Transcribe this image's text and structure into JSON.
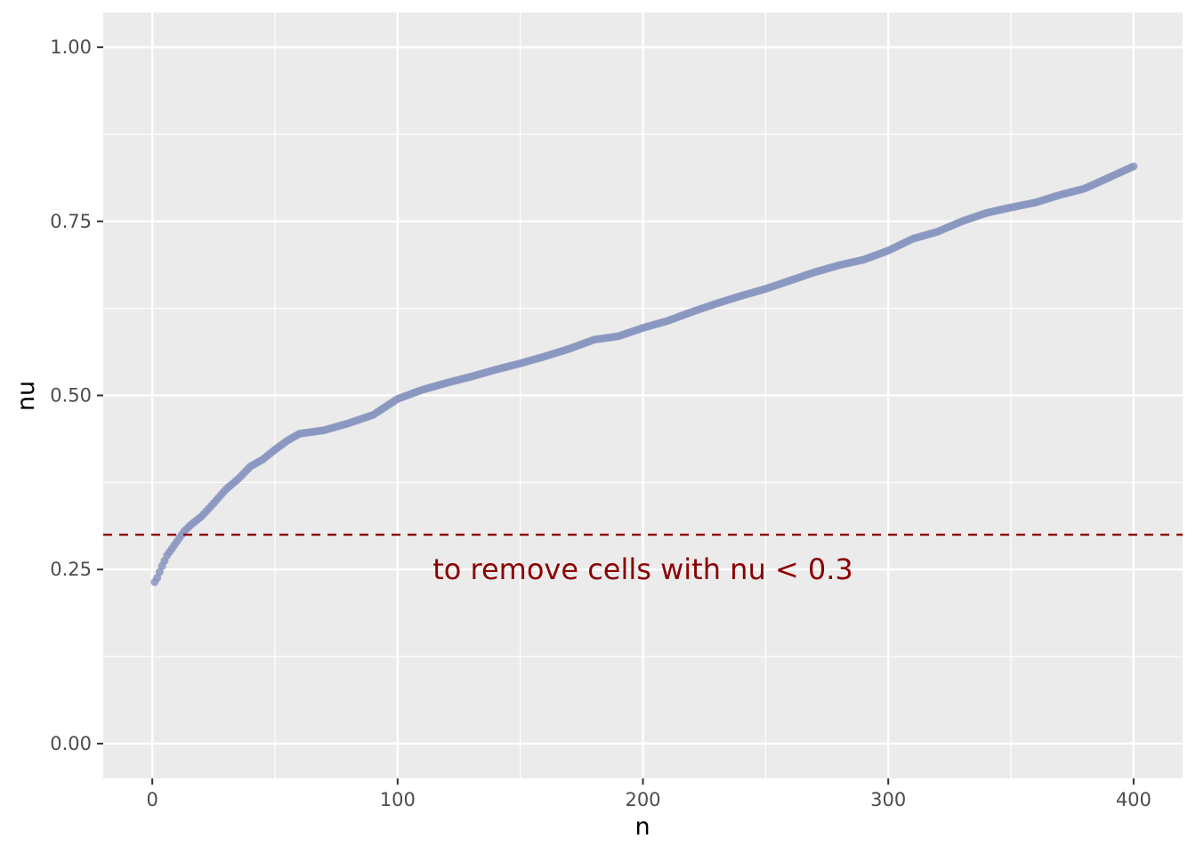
{
  "chart_data": {
    "type": "scatter",
    "xlabel": "n",
    "ylabel": "nu",
    "xlim": [
      -20,
      420
    ],
    "ylim": [
      -0.05,
      1.05
    ],
    "x_ticks": [
      0,
      100,
      200,
      300,
      400
    ],
    "x_tick_labels": [
      "0",
      "100",
      "200",
      "300",
      "400"
    ],
    "y_ticks": [
      0,
      0.25,
      0.5,
      0.75,
      1.0
    ],
    "y_tick_labels": [
      "0.00",
      "0.25",
      "0.50",
      "0.75",
      "1.00"
    ],
    "grid": true,
    "point_color": "#8a96bf",
    "series": [
      {
        "n_points": 400,
        "x_range": [
          1,
          400
        ],
        "curve_anchor_x": [
          1,
          2,
          4,
          6,
          8,
          10,
          13,
          16,
          20,
          25,
          30,
          35,
          40,
          45,
          50,
          55,
          60,
          70,
          80,
          90,
          100,
          110,
          120,
          130,
          140,
          150,
          160,
          170,
          180,
          190,
          200,
          210,
          220,
          230,
          240,
          250,
          260,
          270,
          280,
          290,
          300,
          310,
          320,
          330,
          340,
          350,
          360,
          370,
          380,
          390,
          400
        ],
        "curve_anchor_y": [
          0.232,
          0.238,
          0.255,
          0.27,
          0.28,
          0.29,
          0.305,
          0.315,
          0.326,
          0.345,
          0.365,
          0.38,
          0.398,
          0.408,
          0.422,
          0.435,
          0.445,
          0.45,
          0.46,
          0.472,
          0.495,
          0.508,
          0.518,
          0.527,
          0.537,
          0.546,
          0.556,
          0.567,
          0.58,
          0.585,
          0.597,
          0.607,
          0.62,
          0.632,
          0.643,
          0.653,
          0.665,
          0.677,
          0.687,
          0.695,
          0.708,
          0.725,
          0.735,
          0.75,
          0.762,
          0.77,
          0.777,
          0.788,
          0.797,
          0.813,
          0.829
        ]
      }
    ],
    "reference_line": {
      "y": 0.3,
      "style": "dashed",
      "color": "#8b0000"
    },
    "annotation": {
      "text": "to remove cells with nu < 0.3",
      "x": 200,
      "y": 0.25,
      "color": "#8b0000"
    }
  }
}
